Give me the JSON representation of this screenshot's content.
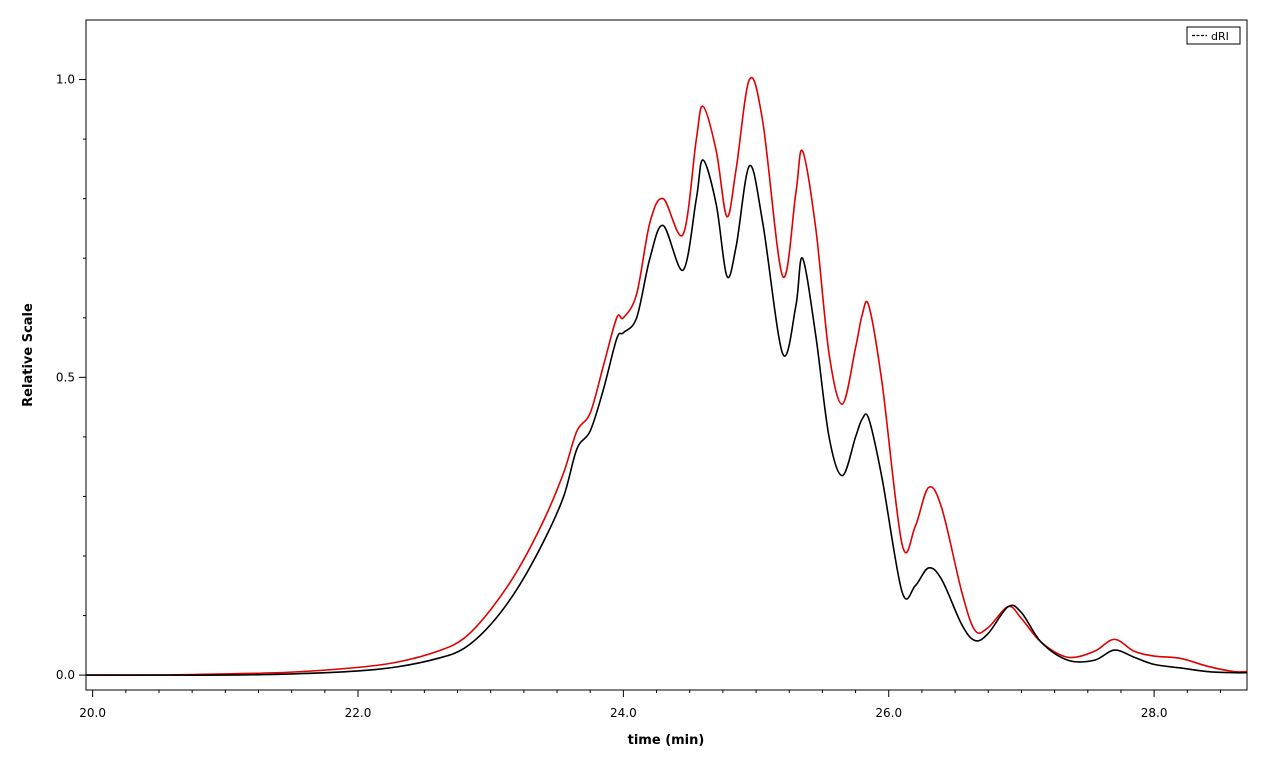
{
  "chart_data": {
    "type": "line",
    "title": "",
    "xlabel": "time (min)",
    "ylabel": "Relative Scale",
    "xlim": [
      19.95,
      28.7
    ],
    "ylim": [
      -0.025,
      1.1
    ],
    "x_ticks": [
      20.0,
      22.0,
      24.0,
      26.0,
      28.0
    ],
    "x_tick_labels": [
      "20.0",
      "22.0",
      "24.0",
      "26.0",
      "28.0"
    ],
    "y_ticks": [
      0.0,
      0.5,
      1.0
    ],
    "y_tick_labels": [
      "0.0",
      "0.5",
      "1.0"
    ],
    "grid": false,
    "legend": {
      "position": "top-right",
      "entries": [
        "dRI"
      ]
    },
    "series": [
      {
        "name": "dRI",
        "color": "#000000",
        "x": [
          19.95,
          20.5,
          21.0,
          21.5,
          22.0,
          22.3,
          22.6,
          22.8,
          23.0,
          23.2,
          23.4,
          23.55,
          23.65,
          23.75,
          23.85,
          23.95,
          24.0,
          24.1,
          24.2,
          24.3,
          24.45,
          24.55,
          24.6,
          24.7,
          24.78,
          24.85,
          24.95,
          25.05,
          25.2,
          25.3,
          25.35,
          25.45,
          25.55,
          25.65,
          25.75,
          25.8,
          25.85,
          25.95,
          26.1,
          26.2,
          26.3,
          26.4,
          26.55,
          26.65,
          26.75,
          26.9,
          27.0,
          27.15,
          27.35,
          27.55,
          27.7,
          27.85,
          28.0,
          28.2,
          28.4,
          28.6,
          28.7
        ],
        "values": [
          0.0,
          0.0,
          0.0,
          0.002,
          0.007,
          0.014,
          0.028,
          0.045,
          0.085,
          0.145,
          0.225,
          0.3,
          0.38,
          0.41,
          0.48,
          0.565,
          0.575,
          0.6,
          0.7,
          0.755,
          0.68,
          0.8,
          0.865,
          0.79,
          0.67,
          0.72,
          0.855,
          0.76,
          0.54,
          0.62,
          0.7,
          0.57,
          0.4,
          0.335,
          0.4,
          0.43,
          0.43,
          0.33,
          0.14,
          0.15,
          0.18,
          0.16,
          0.085,
          0.058,
          0.07,
          0.115,
          0.105,
          0.055,
          0.025,
          0.025,
          0.042,
          0.03,
          0.018,
          0.012,
          0.006,
          0.004,
          0.004
        ]
      },
      {
        "name": "",
        "color": "#e00000",
        "x": [
          19.95,
          20.5,
          21.0,
          21.5,
          22.0,
          22.3,
          22.6,
          22.8,
          23.0,
          23.2,
          23.4,
          23.55,
          23.65,
          23.75,
          23.85,
          23.95,
          24.0,
          24.1,
          24.2,
          24.3,
          24.45,
          24.55,
          24.6,
          24.7,
          24.78,
          24.85,
          24.95,
          25.05,
          25.2,
          25.3,
          25.35,
          25.45,
          25.55,
          25.65,
          25.75,
          25.8,
          25.85,
          25.95,
          26.1,
          26.2,
          26.3,
          26.4,
          26.55,
          26.65,
          26.75,
          26.9,
          27.0,
          27.15,
          27.35,
          27.55,
          27.7,
          27.85,
          28.0,
          28.2,
          28.4,
          28.6,
          28.7
        ],
        "values": [
          0.0,
          0.0,
          0.002,
          0.005,
          0.013,
          0.022,
          0.04,
          0.062,
          0.11,
          0.175,
          0.26,
          0.34,
          0.41,
          0.44,
          0.52,
          0.6,
          0.6,
          0.64,
          0.76,
          0.8,
          0.74,
          0.9,
          0.955,
          0.88,
          0.77,
          0.85,
          1.0,
          0.93,
          0.67,
          0.81,
          0.88,
          0.75,
          0.54,
          0.455,
          0.55,
          0.605,
          0.62,
          0.49,
          0.22,
          0.25,
          0.315,
          0.28,
          0.14,
          0.075,
          0.08,
          0.115,
          0.095,
          0.055,
          0.03,
          0.04,
          0.06,
          0.04,
          0.032,
          0.028,
          0.015,
          0.006,
          0.006
        ]
      }
    ]
  }
}
